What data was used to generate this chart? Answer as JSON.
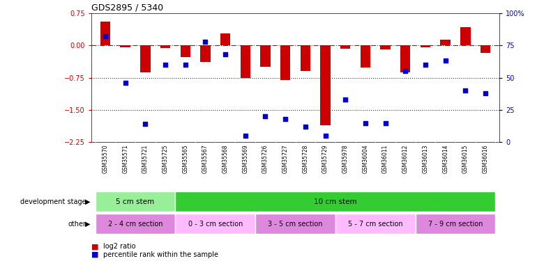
{
  "title": "GDS2895 / 5340",
  "samples": [
    "GSM35570",
    "GSM35571",
    "GSM35721",
    "GSM35725",
    "GSM35565",
    "GSM35567",
    "GSM35568",
    "GSM35569",
    "GSM35726",
    "GSM35727",
    "GSM35728",
    "GSM35729",
    "GSM35978",
    "GSM36004",
    "GSM36011",
    "GSM36012",
    "GSM36013",
    "GSM36014",
    "GSM36015",
    "GSM36016"
  ],
  "log2_ratio": [
    0.55,
    -0.05,
    -0.62,
    -0.07,
    -0.28,
    -0.38,
    0.28,
    -0.75,
    -0.5,
    -0.8,
    -0.6,
    -1.85,
    -0.08,
    -0.52,
    -0.1,
    -0.62,
    -0.05,
    0.13,
    0.42,
    -0.18
  ],
  "percentile": [
    82,
    46,
    14,
    60,
    60,
    78,
    68,
    5,
    20,
    18,
    12,
    5,
    33,
    15,
    15,
    55,
    60,
    63,
    40,
    38
  ],
  "ylim_left": [
    -2.25,
    0.75
  ],
  "ylim_right": [
    0,
    100
  ],
  "yticks_left": [
    0.75,
    0.0,
    -0.75,
    -1.5,
    -2.25
  ],
  "yticks_right": [
    100,
    75,
    50,
    25,
    0
  ],
  "hlines_dotted": [
    -0.75,
    -1.5
  ],
  "bar_color": "#cc0000",
  "dot_color": "#0000cc",
  "zero_line_color": "#cc0000",
  "hline_color": "#333333",
  "dev_stage_groups": [
    {
      "label": "5 cm stem",
      "start": 0,
      "end": 4,
      "color": "#99ee99"
    },
    {
      "label": "10 cm stem",
      "start": 4,
      "end": 20,
      "color": "#33cc33"
    }
  ],
  "other_groups": [
    {
      "label": "2 - 4 cm section",
      "start": 0,
      "end": 4,
      "color": "#dd88dd"
    },
    {
      "label": "0 - 3 cm section",
      "start": 4,
      "end": 8,
      "color": "#ffbbff"
    },
    {
      "label": "3 - 5 cm section",
      "start": 8,
      "end": 12,
      "color": "#dd88dd"
    },
    {
      "label": "5 - 7 cm section",
      "start": 12,
      "end": 16,
      "color": "#ffbbff"
    },
    {
      "label": "7 - 9 cm section",
      "start": 16,
      "end": 20,
      "color": "#dd88dd"
    }
  ],
  "legend_items": [
    {
      "label": "log2 ratio",
      "color": "#cc0000"
    },
    {
      "label": "percentile rank within the sample",
      "color": "#0000cc"
    }
  ],
  "bg_color": "#ffffff",
  "tick_label_color_left": "#cc0000",
  "tick_label_color_right": "#0000cc",
  "bar_width": 0.5,
  "xtick_bg_color": "#cccccc"
}
